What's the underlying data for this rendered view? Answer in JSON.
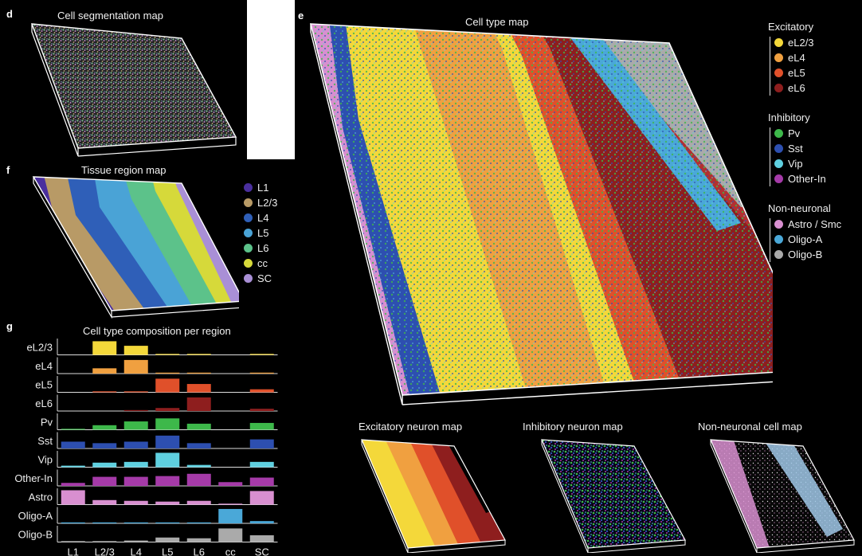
{
  "panels": {
    "d": {
      "label": "d",
      "title": "Cell segmentation map"
    },
    "e": {
      "label": "e",
      "title": "Cell type map"
    },
    "f": {
      "label": "f",
      "title": "Tissue region map"
    },
    "g": {
      "label": "g",
      "title": "Cell type composition per region"
    },
    "excitatory": {
      "title": "Excitatory neuron map"
    },
    "inhibitory": {
      "title": "Inhibitory neuron map"
    },
    "nonneuronal": {
      "title": "Non-neuronal cell map"
    }
  },
  "region_legend": [
    {
      "label": "L1",
      "color": "#4a2f9e"
    },
    {
      "label": "L2/3",
      "color": "#b89a66"
    },
    {
      "label": "L4",
      "color": "#2f5fb8"
    },
    {
      "label": "L5",
      "color": "#4aa3d6"
    },
    {
      "label": "L6",
      "color": "#5cc28a"
    },
    {
      "label": "cc",
      "color": "#d6d93a"
    },
    {
      "label": "SC",
      "color": "#a98fd6"
    }
  ],
  "celltype_legend": [
    {
      "group": "Excitatory",
      "items": [
        {
          "label": "eL2/3",
          "color": "#f4d83a"
        },
        {
          "label": "eL4",
          "color": "#f0a040"
        },
        {
          "label": "eL5",
          "color": "#e0502a"
        },
        {
          "label": "eL6",
          "color": "#8e1e1e"
        }
      ]
    },
    {
      "group": "Inhibitory",
      "items": [
        {
          "label": "Pv",
          "color": "#3db84a"
        },
        {
          "label": "Sst",
          "color": "#2d4fb0"
        },
        {
          "label": "Vip",
          "color": "#5fd0e0"
        },
        {
          "label": "Other-In",
          "color": "#a53aa8"
        }
      ]
    },
    {
      "group": "Non-neuronal",
      "items": [
        {
          "label": "Astro / Smc",
          "color": "#d88fd0"
        },
        {
          "label": "Oligo-A",
          "color": "#4aa8d8"
        },
        {
          "label": "Oligo-B",
          "color": "#aaaaaa"
        }
      ]
    }
  ],
  "chart_data": {
    "type": "bar",
    "title": "Cell type composition per region",
    "categories": [
      "L1",
      "L2/3",
      "L4",
      "L5",
      "L6",
      "cc",
      "SC"
    ],
    "series": [
      {
        "name": "eL2/3",
        "color": "#f4d83a",
        "values": [
          0,
          0.9,
          0.6,
          0.02,
          0.01,
          0,
          0.05
        ]
      },
      {
        "name": "eL4",
        "color": "#f0a040",
        "values": [
          0,
          0.35,
          0.9,
          0.05,
          0.02,
          0,
          0.05
        ]
      },
      {
        "name": "eL5",
        "color": "#e0502a",
        "values": [
          0,
          0.02,
          0.05,
          0.9,
          0.55,
          0,
          0.2
        ]
      },
      {
        "name": "eL6",
        "color": "#8e1e1e",
        "values": [
          0,
          0,
          0.02,
          0.2,
          0.9,
          0,
          0.15
        ]
      },
      {
        "name": "Pv",
        "color": "#3db84a",
        "values": [
          0.05,
          0.3,
          0.55,
          0.75,
          0.4,
          0,
          0.45
        ]
      },
      {
        "name": "Sst",
        "color": "#2d4fb0",
        "values": [
          0.45,
          0.35,
          0.45,
          0.85,
          0.35,
          0,
          0.6
        ]
      },
      {
        "name": "Vip",
        "color": "#5fd0e0",
        "values": [
          0.1,
          0.3,
          0.35,
          0.95,
          0.15,
          0,
          0.35
        ]
      },
      {
        "name": "Other-In",
        "color": "#a53aa8",
        "values": [
          0.2,
          0.6,
          0.6,
          0.65,
          0.8,
          0.25,
          0.55
        ]
      },
      {
        "name": "Astro",
        "color": "#d88fd0",
        "values": [
          0.95,
          0.3,
          0.25,
          0.2,
          0.25,
          0.05,
          0.9
        ]
      },
      {
        "name": "Oligo-A",
        "color": "#4aa8d8",
        "values": [
          0.02,
          0.02,
          0.02,
          0.05,
          0.05,
          0.95,
          0.15
        ]
      },
      {
        "name": "Oligo-B",
        "color": "#aaaaaa",
        "values": [
          0.05,
          0.05,
          0.1,
          0.3,
          0.25,
          0.9,
          0.45
        ]
      }
    ]
  }
}
